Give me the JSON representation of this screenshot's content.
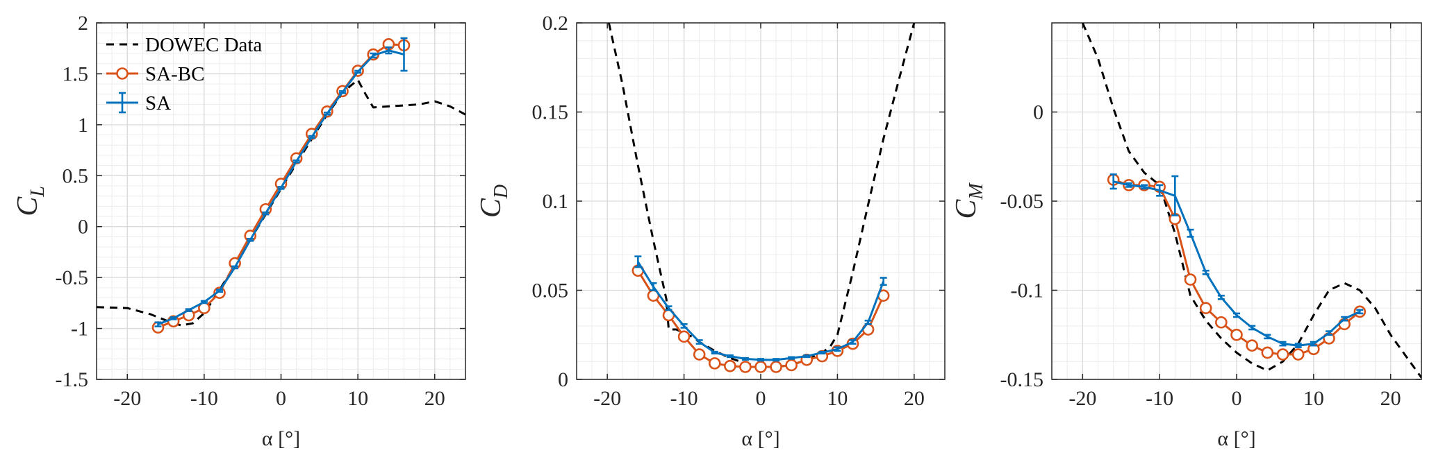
{
  "legend": {
    "entries": [
      {
        "label": "DOWEC Data",
        "color": "#000000",
        "style": "dashed"
      },
      {
        "label": "SA-BC",
        "color": "#d95319",
        "style": "line-circle"
      },
      {
        "label": "SA",
        "color": "#0072bd",
        "style": "line-errorbar"
      }
    ],
    "placement": "top-left of first panel"
  },
  "chart_data": [
    {
      "type": "line",
      "panel": "lift",
      "xlabel": "α [°]",
      "ylabel": "C",
      "ylabel_sub": "L",
      "xlim": [
        -24,
        24
      ],
      "ylim": [
        -1.5,
        2
      ],
      "xticks": [
        -20,
        -10,
        0,
        10,
        20
      ],
      "yticks": [
        -1.5,
        -1,
        -0.5,
        0,
        0.5,
        1,
        1.5,
        2
      ],
      "ytick_labels": [
        "-1.5",
        "-1",
        "-0.5",
        "0",
        "0.5",
        "1",
        "1.5",
        "2"
      ],
      "grid": true,
      "minor_grid": true,
      "series": [
        {
          "name": "DOWEC Data",
          "color": "#000000",
          "style": "dashed",
          "x": [
            -24,
            -20,
            -17,
            -15,
            -13,
            -11.5,
            -10,
            -8,
            -6,
            -4,
            -2,
            0,
            2,
            4,
            6,
            8,
            9,
            10,
            11,
            12,
            14,
            16,
            18,
            20,
            22,
            24
          ],
          "y": [
            -0.79,
            -0.8,
            -0.86,
            -0.92,
            -0.97,
            -0.95,
            -0.85,
            -0.62,
            -0.38,
            -0.13,
            0.12,
            0.37,
            0.62,
            0.86,
            1.1,
            1.31,
            1.38,
            1.44,
            1.3,
            1.17,
            1.18,
            1.19,
            1.2,
            1.23,
            1.18,
            1.1
          ]
        },
        {
          "name": "SA-BC",
          "color": "#d95319",
          "style": "line-circle",
          "x": [
            -16,
            -14,
            -12,
            -10,
            -8,
            -6,
            -4,
            -2,
            0,
            2,
            4,
            6,
            8,
            10,
            12,
            14,
            16
          ],
          "y": [
            -0.99,
            -0.93,
            -0.87,
            -0.8,
            -0.65,
            -0.36,
            -0.09,
            0.17,
            0.42,
            0.67,
            0.91,
            1.13,
            1.33,
            1.53,
            1.69,
            1.79,
            1.78
          ]
        },
        {
          "name": "SA",
          "color": "#0072bd",
          "style": "line-errorbar",
          "x": [
            -16,
            -14,
            -12,
            -10,
            -8,
            -6,
            -4,
            -2,
            0,
            2,
            4,
            6,
            8,
            10,
            12,
            14,
            16
          ],
          "y": [
            -0.96,
            -0.9,
            -0.82,
            -0.74,
            -0.63,
            -0.4,
            -0.13,
            0.13,
            0.38,
            0.64,
            0.88,
            1.11,
            1.32,
            1.52,
            1.68,
            1.73,
            1.69
          ],
          "err": [
            0.02,
            0.01,
            0.01,
            0.01,
            0.01,
            0.01,
            0.01,
            0.01,
            0.01,
            0.01,
            0.01,
            0.01,
            0.01,
            0.01,
            0.02,
            0.03,
            0.16
          ]
        }
      ]
    },
    {
      "type": "line",
      "panel": "drag",
      "xlabel": "α [°]",
      "ylabel": "C",
      "ylabel_sub": "D",
      "xlim": [
        -24,
        24
      ],
      "ylim": [
        0,
        0.2
      ],
      "xticks": [
        -20,
        -10,
        0,
        10,
        20
      ],
      "yticks": [
        0,
        0.05,
        0.1,
        0.15,
        0.2
      ],
      "ytick_labels": [
        "0",
        "0.05",
        "0.1",
        "0.15",
        "0.2"
      ],
      "grid": true,
      "minor_grid": true,
      "series": [
        {
          "name": "DOWEC Data",
          "color": "#000000",
          "style": "dashed",
          "x": [
            -19.8,
            -18,
            -16,
            -14,
            -12.3,
            -12,
            -11,
            -10,
            -9,
            -8,
            -6,
            -4,
            -2,
            0,
            2,
            4,
            6,
            8,
            9,
            10,
            12,
            14,
            16,
            18,
            20
          ],
          "y": [
            0.2,
            0.165,
            0.12,
            0.078,
            0.045,
            0.028,
            0.028,
            0.026,
            0.024,
            0.021,
            0.016,
            0.012,
            0.009,
            0.007,
            0.007,
            0.008,
            0.011,
            0.015,
            0.018,
            0.025,
            0.06,
            0.098,
            0.135,
            0.168,
            0.2
          ]
        },
        {
          "name": "SA-BC",
          "color": "#d95319",
          "style": "line-circle",
          "x": [
            -16,
            -14,
            -12,
            -10,
            -8,
            -6,
            -4,
            -2,
            0,
            2,
            4,
            6,
            8,
            10,
            12,
            14,
            16
          ],
          "y": [
            0.061,
            0.047,
            0.036,
            0.024,
            0.014,
            0.009,
            0.0075,
            0.007,
            0.007,
            0.007,
            0.008,
            0.011,
            0.013,
            0.016,
            0.02,
            0.028,
            0.047
          ]
        },
        {
          "name": "SA",
          "color": "#0072bd",
          "style": "line-errorbar",
          "x": [
            -16,
            -14,
            -12,
            -10,
            -8,
            -6,
            -4,
            -2,
            0,
            2,
            4,
            6,
            8,
            10,
            12,
            14,
            16
          ],
          "y": [
            0.066,
            0.052,
            0.04,
            0.03,
            0.021,
            0.015,
            0.013,
            0.0115,
            0.011,
            0.011,
            0.012,
            0.013,
            0.015,
            0.017,
            0.021,
            0.032,
            0.055
          ],
          "err": [
            0.003,
            0.002,
            0.001,
            0.001,
            0.001,
            0.0005,
            0.0005,
            0.0005,
            0.0005,
            0.0005,
            0.0005,
            0.0005,
            0.0005,
            0.001,
            0.001,
            0.001,
            0.002
          ]
        }
      ]
    },
    {
      "type": "line",
      "panel": "moment",
      "xlabel": "α [°]",
      "ylabel": "C",
      "ylabel_sub": "M",
      "xlim": [
        -24,
        24
      ],
      "ylim": [
        -0.15,
        0.05
      ],
      "xticks": [
        -20,
        -10,
        0,
        10,
        20
      ],
      "yticks": [
        -0.15,
        -0.1,
        -0.05,
        0
      ],
      "ytick_labels": [
        "-0.15",
        "-0.1",
        "-0.05",
        "0"
      ],
      "grid": true,
      "minor_grid": true,
      "series": [
        {
          "name": "DOWEC Data",
          "color": "#000000",
          "style": "dashed",
          "x": [
            -20,
            -18,
            -16,
            -14,
            -12,
            -10,
            -8,
            -6,
            -4,
            -2,
            0,
            2,
            4,
            6,
            8,
            10,
            12,
            14,
            16,
            18,
            20,
            22,
            24
          ],
          "y": [
            0.05,
            0.03,
            0.002,
            -0.022,
            -0.034,
            -0.041,
            -0.068,
            -0.103,
            -0.117,
            -0.127,
            -0.135,
            -0.141,
            -0.145,
            -0.14,
            -0.13,
            -0.114,
            -0.1,
            -0.096,
            -0.1,
            -0.11,
            -0.125,
            -0.137,
            -0.149
          ]
        },
        {
          "name": "SA-BC",
          "color": "#d95319",
          "style": "line-circle",
          "x": [
            -16,
            -14,
            -12,
            -10,
            -8,
            -6,
            -4,
            -2,
            0,
            2,
            4,
            6,
            8,
            10,
            12,
            14,
            16
          ],
          "y": [
            -0.038,
            -0.041,
            -0.041,
            -0.042,
            -0.06,
            -0.094,
            -0.11,
            -0.118,
            -0.125,
            -0.131,
            -0.135,
            -0.136,
            -0.136,
            -0.133,
            -0.127,
            -0.119,
            -0.112
          ]
        },
        {
          "name": "SA",
          "color": "#0072bd",
          "style": "line-errorbar",
          "x": [
            -16,
            -14,
            -12,
            -10,
            -8,
            -6,
            -4,
            -2,
            0,
            2,
            4,
            6,
            8,
            10,
            12,
            14,
            16
          ],
          "y": [
            -0.039,
            -0.041,
            -0.042,
            -0.044,
            -0.047,
            -0.068,
            -0.09,
            -0.104,
            -0.114,
            -0.121,
            -0.126,
            -0.13,
            -0.131,
            -0.13,
            -0.124,
            -0.116,
            -0.112
          ],
          "err": [
            0.004,
            0.001,
            0.001,
            0.003,
            0.011,
            0.002,
            0.001,
            0.001,
            0.001,
            0.001,
            0.001,
            0.001,
            0.001,
            0.001,
            0.001,
            0.001,
            0.001
          ]
        }
      ]
    }
  ]
}
